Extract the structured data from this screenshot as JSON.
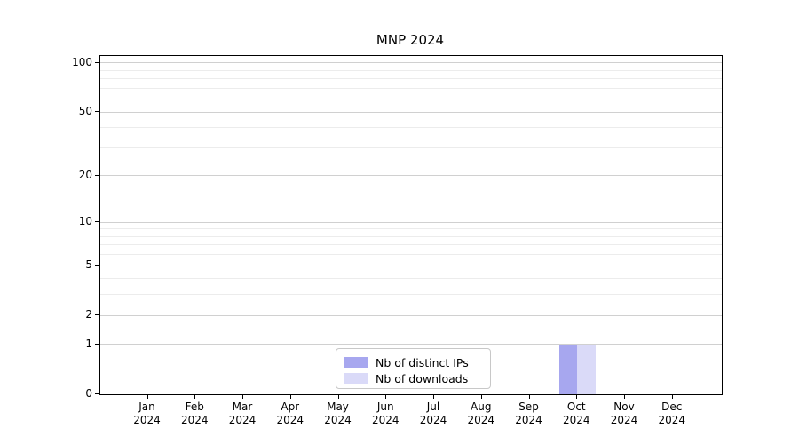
{
  "chart_data": {
    "type": "bar",
    "title": "MNP 2024",
    "x_axis": {
      "months": [
        "Jan",
        "Feb",
        "Mar",
        "Apr",
        "May",
        "Jun",
        "Jul",
        "Aug",
        "Sep",
        "Oct",
        "Nov",
        "Dec"
      ],
      "year": "2024"
    },
    "y_axis": {
      "scale": "log1p",
      "range": [
        0,
        100
      ],
      "major_ticks": [
        0,
        1,
        2,
        5,
        10,
        20,
        50,
        100
      ],
      "tick_labels": [
        "0",
        "1",
        "2",
        "5",
        "10",
        "20",
        "50",
        "100"
      ],
      "minor_ticks": [
        3,
        4,
        6,
        7,
        8,
        9,
        30,
        40,
        60,
        70,
        80,
        90
      ]
    },
    "series": [
      {
        "name": "Nb of distinct IPs",
        "color": "#a7a7ef",
        "values": [
          0,
          0,
          0,
          0,
          0,
          0,
          0,
          0,
          0,
          1,
          0,
          0
        ]
      },
      {
        "name": "Nb of downloads",
        "color": "#dadaf8",
        "values": [
          0,
          0,
          0,
          0,
          0,
          0,
          0,
          0,
          0,
          1,
          0,
          0
        ]
      }
    ],
    "legend": {
      "position": "bottom-center",
      "items": [
        "Nb of distinct IPs",
        "Nb of downloads"
      ]
    },
    "grid": "horizontal",
    "style": {
      "major_grid_color": "#d0d0d0",
      "minor_grid_color": "#ececec",
      "axis_color": "#000000",
      "background": "#ffffff"
    }
  }
}
